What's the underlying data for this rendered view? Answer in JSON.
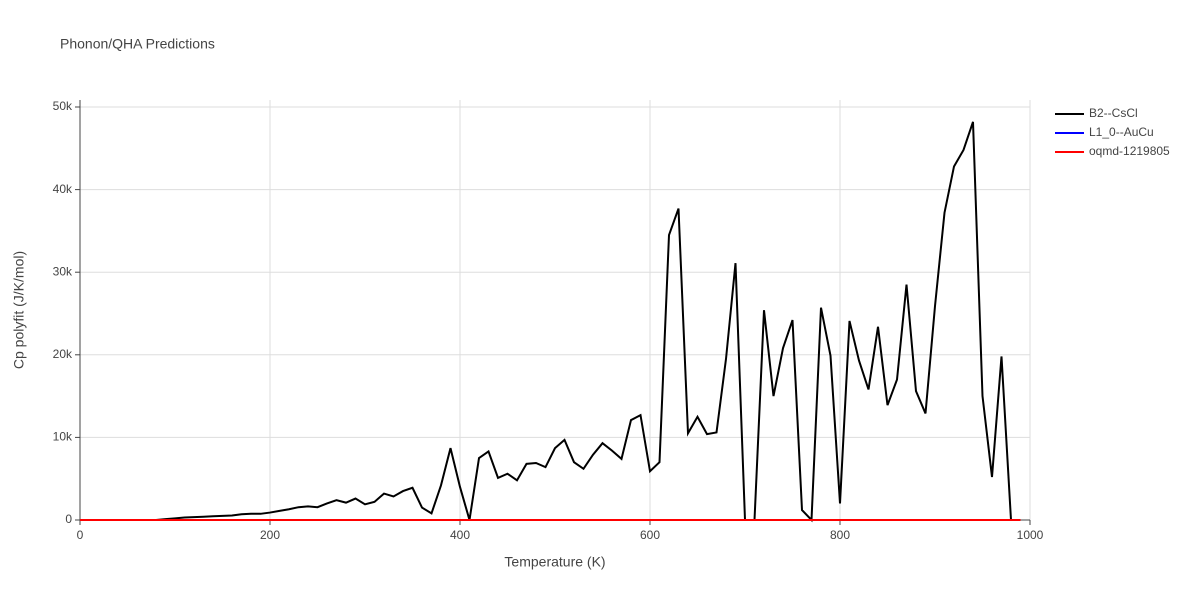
{
  "chart_data": {
    "type": "line",
    "title": "Phonon/QHA Predictions",
    "x_label": "Temperature (K)",
    "y_label": "Cp polyfit (J/K/mol)",
    "xlim": [
      0,
      1000
    ],
    "xticks": [
      0,
      200,
      400,
      600,
      800,
      1000
    ],
    "ylim": [
      0,
      50000
    ],
    "yticks": [
      0,
      {
        "value": 10000,
        "label": "10k"
      },
      {
        "value": 20000,
        "label": "20k"
      },
      {
        "value": 30000,
        "label": "30k"
      },
      {
        "value": 40000,
        "label": "40k"
      },
      {
        "value": 50000,
        "label": "50k"
      }
    ],
    "grid": true,
    "legend": "right",
    "x": [
      0,
      10,
      20,
      30,
      40,
      50,
      60,
      70,
      80,
      90,
      100,
      110,
      120,
      130,
      140,
      150,
      160,
      170,
      180,
      190,
      200,
      210,
      220,
      230,
      240,
      250,
      260,
      270,
      280,
      290,
      300,
      310,
      320,
      330,
      340,
      350,
      360,
      370,
      380,
      390,
      400,
      410,
      420,
      430,
      440,
      450,
      460,
      470,
      480,
      490,
      500,
      510,
      520,
      530,
      540,
      550,
      560,
      570,
      580,
      590,
      600,
      610,
      620,
      630,
      640,
      650,
      660,
      670,
      680,
      690,
      700,
      710,
      720,
      730,
      740,
      750,
      760,
      770,
      780,
      790,
      800,
      810,
      820,
      830,
      840,
      850,
      860,
      870,
      880,
      890,
      900,
      910,
      920,
      930,
      940,
      950,
      960,
      970,
      980,
      990
    ],
    "series": [
      {
        "name": "B2--CsCl",
        "color": "#000000",
        "values": [
          0,
          0,
          0,
          0,
          0,
          0,
          0,
          0,
          0,
          100,
          200,
          300,
          350,
          400,
          450,
          500,
          550,
          700,
          750,
          750,
          900,
          1100,
          1300,
          1550,
          1650,
          1550,
          2000,
          2400,
          2100,
          2600,
          1900,
          2200,
          3200,
          2850,
          3500,
          3900,
          1500,
          800,
          4200,
          8700,
          4000,
          0,
          7500,
          8300,
          5100,
          5600,
          4800,
          6800,
          6900,
          6400,
          8700,
          9700,
          7000,
          6200,
          7900,
          9300,
          8400,
          7400,
          12100,
          12700,
          5900,
          7000,
          34500,
          37700,
          10500,
          12500,
          10400,
          10600,
          19500,
          31100,
          0,
          0,
          25400,
          15000,
          20800,
          24200,
          1200,
          0,
          25700,
          19900,
          2000,
          24100,
          19300,
          15800,
          23400,
          13900,
          17000,
          28500,
          15600,
          12900,
          25900,
          37200,
          42800,
          44800,
          48200,
          15000,
          5200,
          19800,
          0,
          0
        ]
      },
      {
        "name": "L1_0--AuCu",
        "color": "#0000ff",
        "values": [
          0,
          0,
          0,
          0,
          0,
          0,
          0,
          0,
          0,
          0,
          0,
          0,
          0,
          0,
          0,
          0,
          0,
          0,
          0,
          0,
          0,
          0,
          0,
          0,
          0,
          0,
          0,
          0,
          0,
          0,
          0,
          0,
          0,
          0,
          0,
          0,
          0,
          0,
          0,
          0,
          0,
          0,
          0,
          0,
          0,
          0,
          0,
          0,
          0,
          0,
          0,
          0,
          0,
          0,
          0,
          0,
          0,
          0,
          0,
          0,
          0,
          0,
          0,
          0,
          0,
          0,
          0,
          0,
          0,
          0,
          0,
          0,
          0,
          0,
          0,
          0,
          0,
          0,
          0,
          0,
          0,
          0,
          0,
          0,
          0,
          0,
          0,
          0,
          0,
          0,
          0,
          0,
          0,
          0,
          0,
          0,
          0,
          0,
          0,
          0
        ]
      },
      {
        "name": "oqmd-1219805",
        "color": "#ff0000",
        "values": [
          0,
          0,
          0,
          0,
          0,
          0,
          0,
          0,
          0,
          0,
          0,
          0,
          0,
          0,
          0,
          0,
          0,
          0,
          0,
          0,
          0,
          0,
          0,
          0,
          0,
          0,
          0,
          0,
          0,
          0,
          0,
          0,
          0,
          0,
          0,
          0,
          0,
          0,
          0,
          0,
          0,
          0,
          0,
          0,
          0,
          0,
          0,
          0,
          0,
          0,
          0,
          0,
          0,
          0,
          0,
          0,
          0,
          0,
          0,
          0,
          0,
          0,
          0,
          0,
          0,
          0,
          0,
          0,
          0,
          0,
          0,
          0,
          0,
          0,
          0,
          0,
          0,
          0,
          0,
          0,
          0,
          0,
          0,
          0,
          0,
          0,
          0,
          0,
          0,
          0,
          0,
          0,
          0,
          0,
          0,
          0,
          0,
          0,
          0,
          0
        ]
      }
    ]
  }
}
